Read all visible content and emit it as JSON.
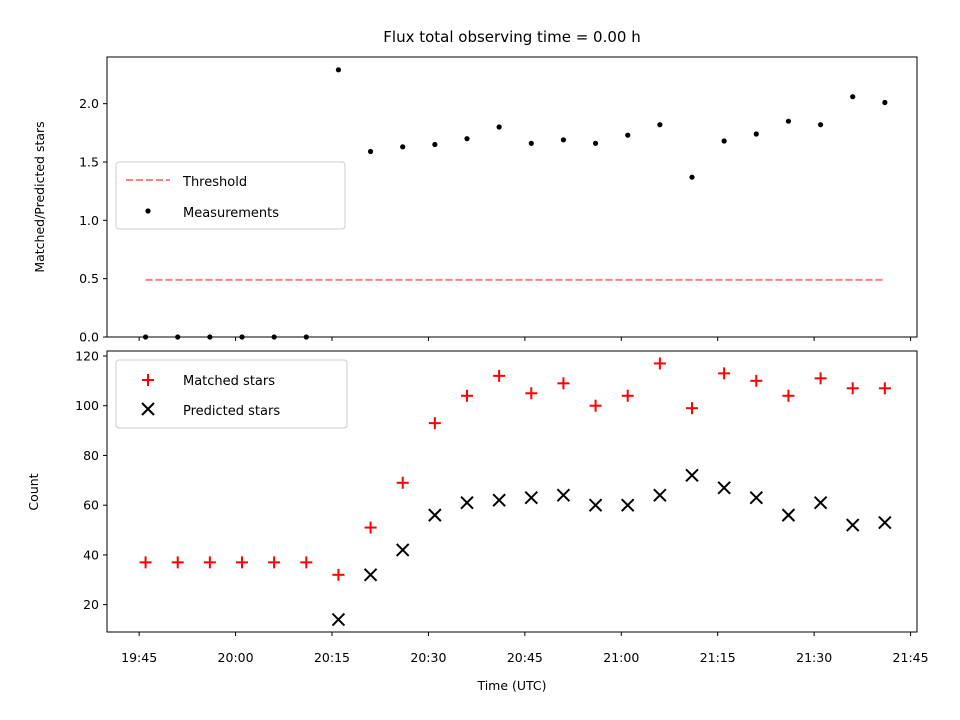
{
  "chart_data": {
    "type": "scatter",
    "title": "Flux total observing time = 0.00 h",
    "xlabel": "Time (UTC)",
    "x_tick_labels": [
      "19:45",
      "20:00",
      "20:15",
      "20:30",
      "20:45",
      "21:00",
      "21:15",
      "21:30",
      "21:45"
    ],
    "x": [
      "19:46",
      "19:51",
      "19:56",
      "20:01",
      "20:06",
      "20:11",
      "20:16",
      "20:21",
      "20:26",
      "20:31",
      "20:36",
      "20:41",
      "20:46",
      "20:51",
      "20:56",
      "21:01",
      "21:06",
      "21:11",
      "21:16",
      "21:21",
      "21:26",
      "21:31",
      "21:36",
      "21:41"
    ],
    "xlim": [
      "19:40",
      "21:46"
    ],
    "panels": [
      {
        "ylabel": "Matched/Predicted stars",
        "ylim": [
          0,
          2.4
        ],
        "y_tick_labels": [
          "0.0",
          "0.5",
          "1.0",
          "1.5",
          "2.0"
        ],
        "legend_position": "center-left",
        "series": [
          {
            "name": "Threshold",
            "type": "line",
            "style": "dashed",
            "color": "#ff8080",
            "x_range": [
              "19:46",
              "21:41"
            ],
            "value": 0.49
          },
          {
            "name": "Measurements",
            "type": "scatter",
            "marker": "dot",
            "color": "#000000",
            "values": [
              0,
              0,
              0,
              0,
              0,
              0,
              2.29,
              1.59,
              1.63,
              1.65,
              1.7,
              1.8,
              1.66,
              1.69,
              1.66,
              1.73,
              1.82,
              1.37,
              1.68,
              1.74,
              1.85,
              1.82,
              2.06,
              2.01
            ]
          }
        ]
      },
      {
        "ylabel": "Count",
        "ylim": [
          9,
          122
        ],
        "y_tick_labels": [
          "20",
          "40",
          "60",
          "80",
          "100",
          "120"
        ],
        "legend_position": "upper-left",
        "series": [
          {
            "name": "Matched stars",
            "type": "scatter",
            "marker": "plus",
            "color": "#ff0000",
            "values": [
              37,
              37,
              37,
              37,
              37,
              37,
              32,
              51,
              69,
              93,
              104,
              112,
              105,
              109,
              100,
              104,
              117,
              99,
              113,
              110,
              104,
              111,
              107,
              107
            ]
          },
          {
            "name": "Predicted stars",
            "type": "scatter",
            "marker": "x",
            "color": "#000000",
            "values": [
              null,
              null,
              null,
              null,
              null,
              null,
              14,
              32,
              42,
              56,
              61,
              62,
              63,
              64,
              60,
              60,
              64,
              72,
              67,
              63,
              56,
              61,
              52,
              53
            ]
          }
        ]
      }
    ]
  }
}
